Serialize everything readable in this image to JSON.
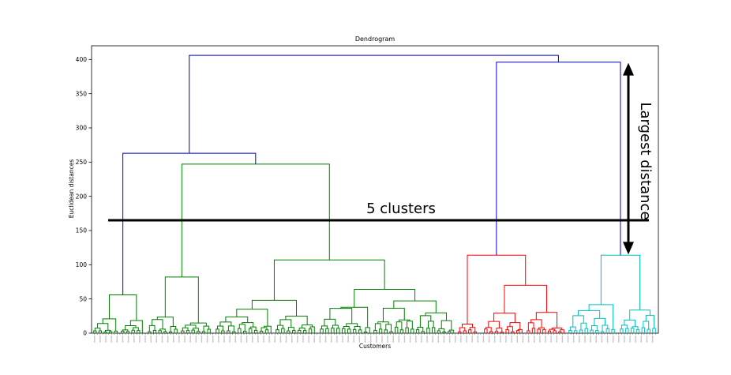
{
  "chart_data": {
    "type": "dendrogram",
    "title": "Dendrogram",
    "xlabel": "Customers",
    "ylabel": "Euclidean distances",
    "ylim": [
      0,
      420
    ],
    "yticks": [
      0,
      50,
      100,
      150,
      200,
      250,
      300,
      350,
      400
    ],
    "grid": false,
    "colors": {
      "above_threshold": "#0000cc",
      "cluster_1": "#008000",
      "cluster_2": "#ff0000",
      "cluster_3": "#00bfbf",
      "annotation": "#000000"
    },
    "n_leaves": 200,
    "merges": [
      {
        "name": "root",
        "height": 406,
        "color": "above_threshold"
      },
      {
        "name": "green-top",
        "height": 263,
        "color": "above_threshold"
      },
      {
        "name": "red-cyan",
        "height": 396,
        "color": "above_threshold"
      },
      {
        "name": "green-mid",
        "height": 247,
        "color": "cluster_1"
      },
      {
        "name": "green-center",
        "height": 107,
        "color": "cluster_1"
      },
      {
        "name": "green-left",
        "height": 56,
        "color": "cluster_1"
      },
      {
        "name": "green-left-mid",
        "height": 82,
        "color": "cluster_1"
      },
      {
        "name": "red",
        "height": 114,
        "color": "cluster_2"
      },
      {
        "name": "cyan",
        "height": 114,
        "color": "cluster_3"
      }
    ],
    "threshold_line": {
      "value": 165,
      "label": "5 clusters"
    },
    "annotation": {
      "label": "Largest distance",
      "from": 115,
      "to": 395
    }
  }
}
